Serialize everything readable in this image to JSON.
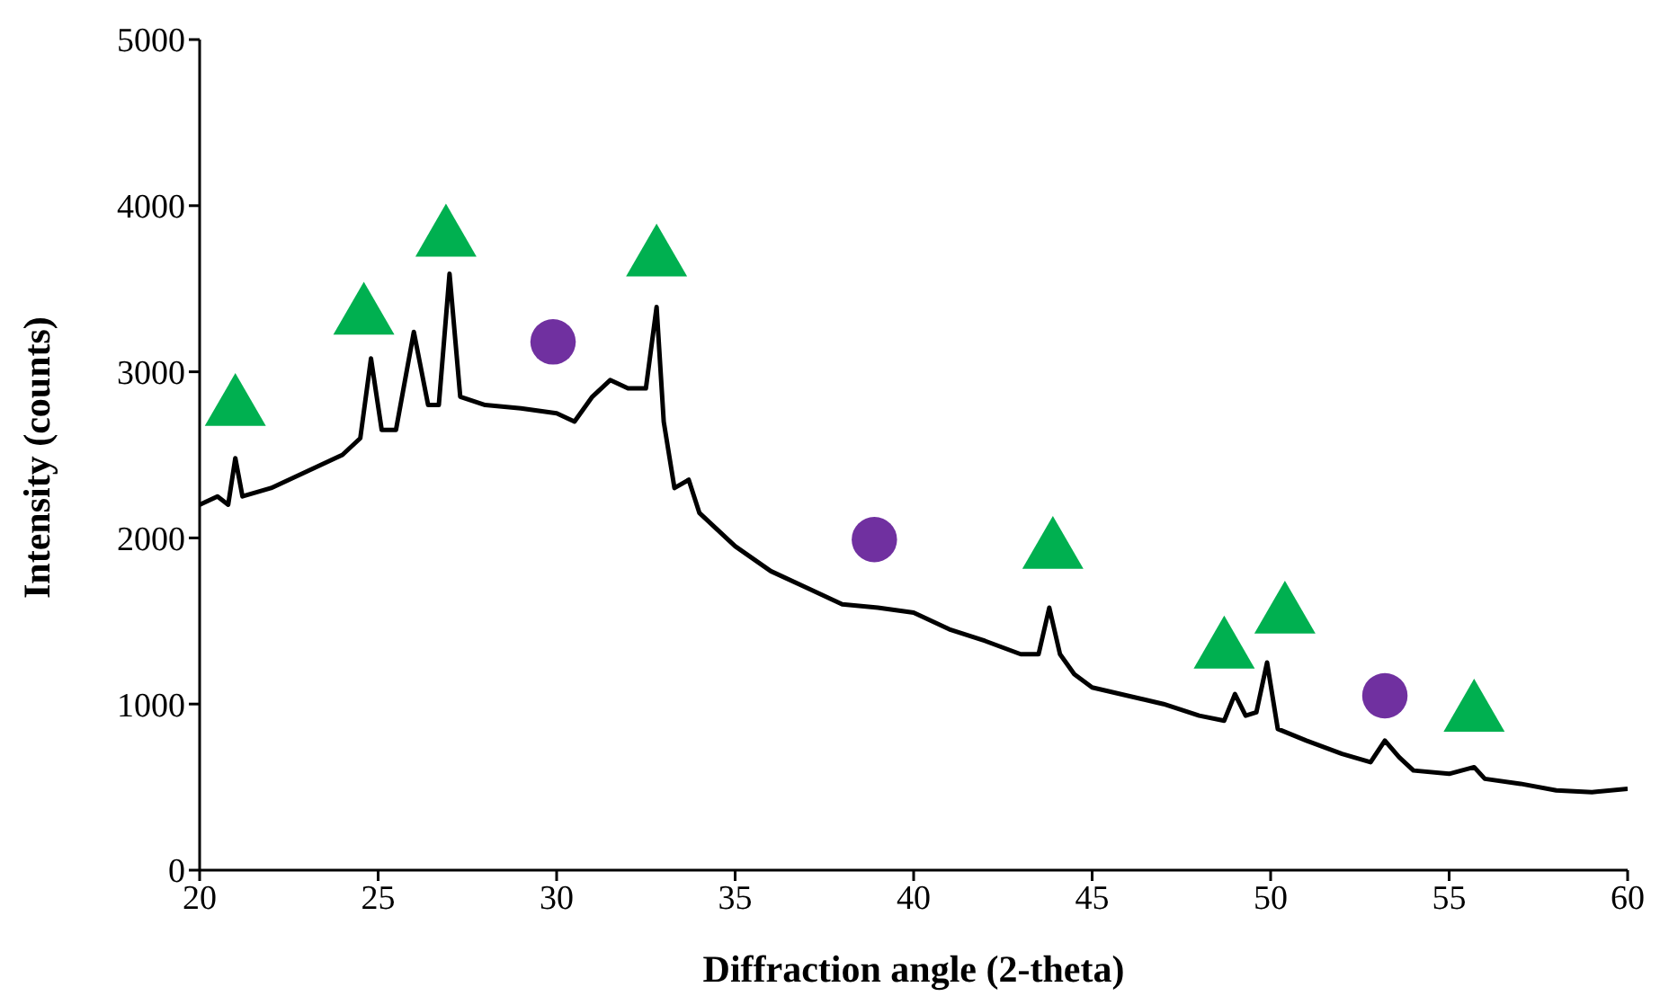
{
  "chart_data": {
    "type": "line",
    "xlabel": "Diffraction angle (2-theta)",
    "ylabel": "Intensity (counts)",
    "xlim": [
      20,
      60
    ],
    "xticks": [
      20,
      25,
      30,
      35,
      40,
      45,
      50,
      55,
      60
    ],
    "ylim": [
      0,
      5000
    ],
    "yticks": [
      0,
      1000,
      2000,
      3000,
      4000,
      5000
    ],
    "grid": false,
    "series": [
      {
        "color": "#000000",
        "marker": "none",
        "x": [
          20,
          20.5,
          20.8,
          21,
          21.2,
          22,
          23,
          24,
          24.5,
          24.8,
          25.1,
          25.5,
          26,
          26.4,
          26.7,
          27,
          27.3,
          28,
          29,
          30,
          30.5,
          31,
          31.5,
          32,
          32.5,
          32.8,
          33,
          33.3,
          33.7,
          34,
          35,
          36,
          37,
          38,
          39,
          40,
          41,
          42,
          43,
          43.5,
          43.8,
          44.1,
          44.5,
          45,
          46,
          47,
          48,
          48.7,
          49,
          49.3,
          49.6,
          49.9,
          50.2,
          51,
          52,
          52.8,
          53.2,
          53.6,
          54,
          55,
          55.7,
          56,
          57,
          58,
          59,
          60
        ],
        "values": [
          2200,
          2250,
          2200,
          2480,
          2250,
          2300,
          2400,
          2500,
          2600,
          3080,
          2650,
          2650,
          3240,
          2800,
          2800,
          3590,
          2850,
          2800,
          2780,
          2750,
          2700,
          2850,
          2950,
          2900,
          2900,
          3390,
          2700,
          2300,
          2350,
          2150,
          1950,
          1800,
          1700,
          1600,
          1580,
          1550,
          1450,
          1380,
          1300,
          1300,
          1580,
          1300,
          1180,
          1100,
          1050,
          1000,
          930,
          900,
          1060,
          930,
          950,
          1250,
          850,
          780,
          700,
          650,
          780,
          680,
          600,
          580,
          620,
          550,
          520,
          480,
          470,
          490
        ]
      },
      {
        "type": "scatter",
        "color": "#00b050",
        "marker": "triangle",
        "x": [
          21,
          24.6,
          26.9,
          32.8,
          43.9,
          48.7,
          50.4,
          55.7
        ],
        "values": [
          2780,
          3330,
          3800,
          3680,
          1920,
          1320,
          1530,
          940
        ]
      },
      {
        "type": "scatter",
        "color": "#7030a0",
        "marker": "circle",
        "x": [
          29.9,
          38.9,
          53.2
        ],
        "values": [
          3180,
          1990,
          1050
        ]
      }
    ]
  }
}
